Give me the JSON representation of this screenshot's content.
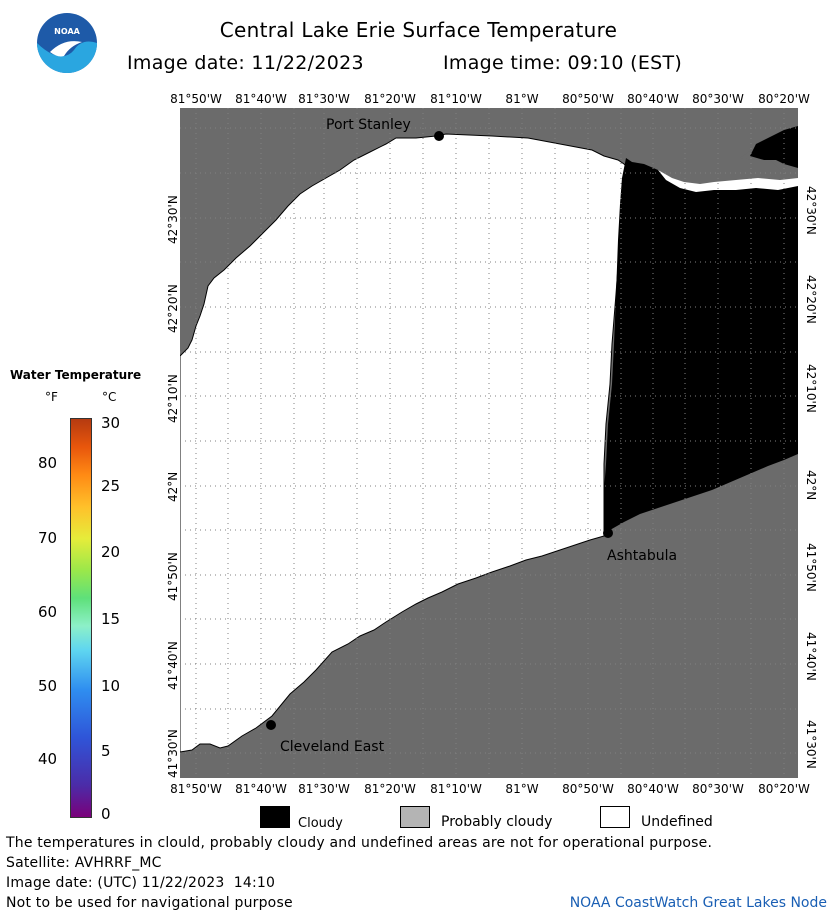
{
  "header": {
    "title": "Central Lake Erie Surface Temperature",
    "image_date": "Image date: 11/22/2023",
    "image_time": "Image time: 09:10 (EST)",
    "logo_text": "NOAA"
  },
  "map": {
    "lon_ticks": [
      "81°50'W",
      "81°40'W",
      "81°30'W",
      "81°20'W",
      "81°10'W",
      "81°W",
      "80°50'W",
      "80°40'W",
      "80°30'W",
      "80°20'W"
    ],
    "lat_ticks_left": [
      "42°30'N",
      "42°20'N",
      "42°10'N",
      "42°N",
      "41°50'N",
      "41°40'N",
      "41°30'N"
    ],
    "lat_ticks_right": [
      "42°30'N",
      "42°20'N",
      "42°10'N",
      "42°N",
      "41°50'N",
      "41°40'N",
      "41°30'N"
    ],
    "places": {
      "port_stanley": "Port Stanley",
      "ashtabula": "Ashtabula",
      "cleveland_east": "Cleveland East"
    },
    "colors": {
      "land": "#6b6b6b",
      "cloudy": "#000000",
      "undefined": "#ffffff",
      "probably_cloudy": "#b4b4b4"
    }
  },
  "legend": {
    "title": "Water Temperature",
    "unit_f": "°F",
    "unit_c": "°C",
    "f_labels": [
      "80",
      "70",
      "60",
      "50",
      "40"
    ],
    "c_labels": [
      "30",
      "25",
      "20",
      "15",
      "10",
      "5",
      "0"
    ]
  },
  "key": {
    "cloudy": "Cloudy",
    "probably_cloudy": "Probably cloudy",
    "undefined": "Undefined"
  },
  "footer": {
    "disclaimer": "The temperatures in clould, probably cloudy and undefined areas are not for operational purpose.",
    "satellite": "Satellite: AVHRRF_MC",
    "utc_date": "Image date: (UTC) 11/22/2023  14:10",
    "nav_warning": "Not to be used for navigational purpose",
    "node": "NOAA CoastWatch Great Lakes Node"
  }
}
